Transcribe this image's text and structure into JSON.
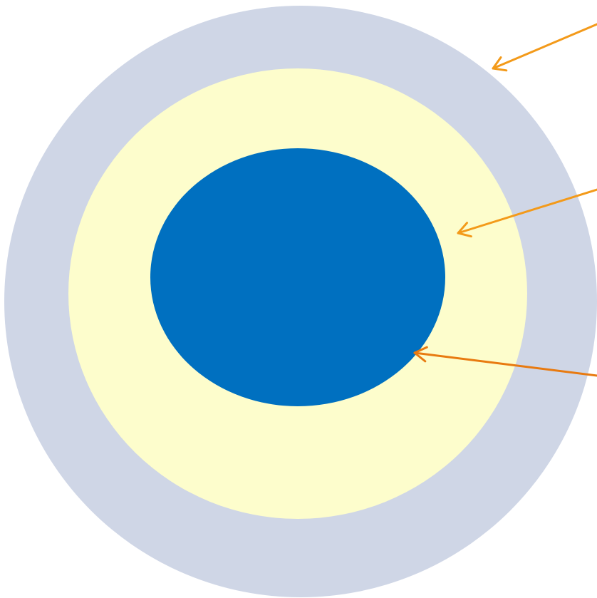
{
  "diagram": {
    "type": "concentric-layers",
    "background_color": "#ffffff",
    "rings": [
      {
        "name": "outer-ring",
        "color": "#cfd6e6"
      },
      {
        "name": "middle-ring",
        "color": "#fdfdcc"
      },
      {
        "name": "inner-core",
        "color": "#0070c0"
      }
    ],
    "pointers": [
      {
        "name": "pointer-outer-ring",
        "color": "#f39a1a",
        "target": "outer-ring"
      },
      {
        "name": "pointer-middle-ring",
        "color": "#f39a1a",
        "target": "middle-ring"
      },
      {
        "name": "pointer-inner-core",
        "color": "#e87a10",
        "target": "inner-core"
      }
    ]
  }
}
